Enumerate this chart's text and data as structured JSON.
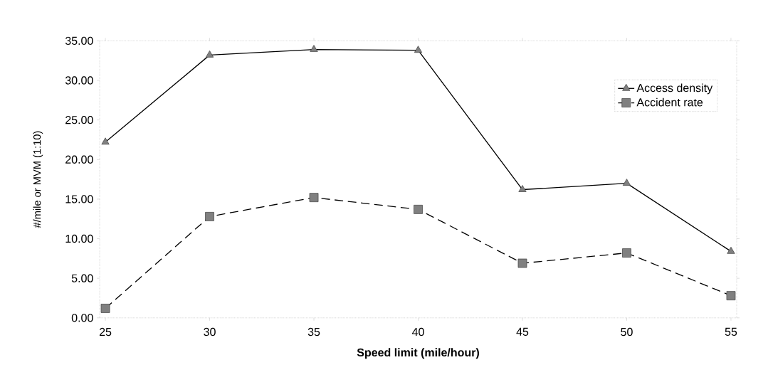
{
  "chart_data": {
    "type": "line",
    "xlabel": "Speed limit (mile/hour)",
    "ylabel": "#/mile or MVM (1:10)",
    "categories": [
      "25",
      "30",
      "35",
      "40",
      "45",
      "50",
      "55"
    ],
    "series": [
      {
        "name": "Access density",
        "color": "#000000",
        "marker": "triangle",
        "line_style": "solid",
        "values": [
          22.2,
          33.2,
          33.9,
          33.8,
          16.2,
          17.0,
          8.4
        ]
      },
      {
        "name": "Accident rate",
        "color": "#000000",
        "marker": "square",
        "line_style": "dashed",
        "values": [
          1.2,
          12.8,
          15.2,
          13.7,
          6.9,
          8.2,
          2.8
        ]
      }
    ],
    "ylim": [
      0,
      35
    ],
    "yticks": [
      {
        "value": 0,
        "label": "0.00"
      },
      {
        "value": 5,
        "label": "5.00"
      },
      {
        "value": 10,
        "label": "10.00"
      },
      {
        "value": 15,
        "label": "15.00"
      },
      {
        "value": 20,
        "label": "20.00"
      },
      {
        "value": 25,
        "label": "25.00"
      },
      {
        "value": 30,
        "label": "30.00"
      },
      {
        "value": 35,
        "label": "35.00"
      }
    ],
    "grid": false,
    "legend": "top right"
  }
}
